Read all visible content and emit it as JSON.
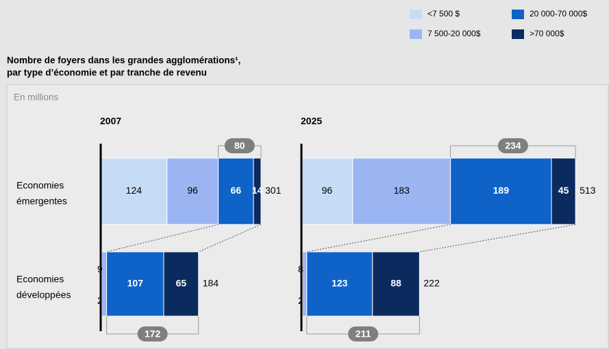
{
  "header": {
    "title": [
      "Nombre de foyers dans les grandes agglomérations¹,",
      "par type d’économie et par tranche de revenu"
    ],
    "subtitle": "En millions"
  },
  "chart_data": [
    {
      "type": "bar",
      "orientation": "horizontal",
      "stacked": true,
      "title": "2007",
      "categories": [
        [
          "Economies",
          "émergentes"
        ],
        [
          "Economies",
          "développées"
        ]
      ],
      "series": [
        {
          "name": "<7 500 $",
          "color": "#c6dcf6",
          "values": [
            124,
            2
          ]
        },
        {
          "name": "7 500-20 000$",
          "color": "#9bb5f2",
          "values": [
            96,
            9
          ]
        },
        {
          "name": "20 000-70 000$",
          "color": "#0f62c8",
          "values": [
            66,
            107
          ]
        },
        {
          "name": ">70 000$",
          "color": "#0b2a5e",
          "values": [
            14,
            65
          ]
        }
      ],
      "totals": [
        301,
        184
      ],
      "group_totals": [
        80,
        172
      ]
    },
    {
      "type": "bar",
      "orientation": "horizontal",
      "stacked": true,
      "title": "2025",
      "series": [
        {
          "name": "<7 500 $",
          "color": "#c6dcf6",
          "values": [
            96,
            2
          ]
        },
        {
          "name": "7 500-20 000$",
          "color": "#9bb5f2",
          "values": [
            183,
            8
          ]
        },
        {
          "name": "20 000-70 000$",
          "color": "#0f62c8",
          "values": [
            189,
            123
          ]
        },
        {
          "name": ">70 000$",
          "color": "#0b2a5e",
          "values": [
            45,
            88
          ]
        }
      ],
      "totals": [
        513,
        222
      ],
      "group_totals": [
        234,
        211
      ]
    }
  ]
}
